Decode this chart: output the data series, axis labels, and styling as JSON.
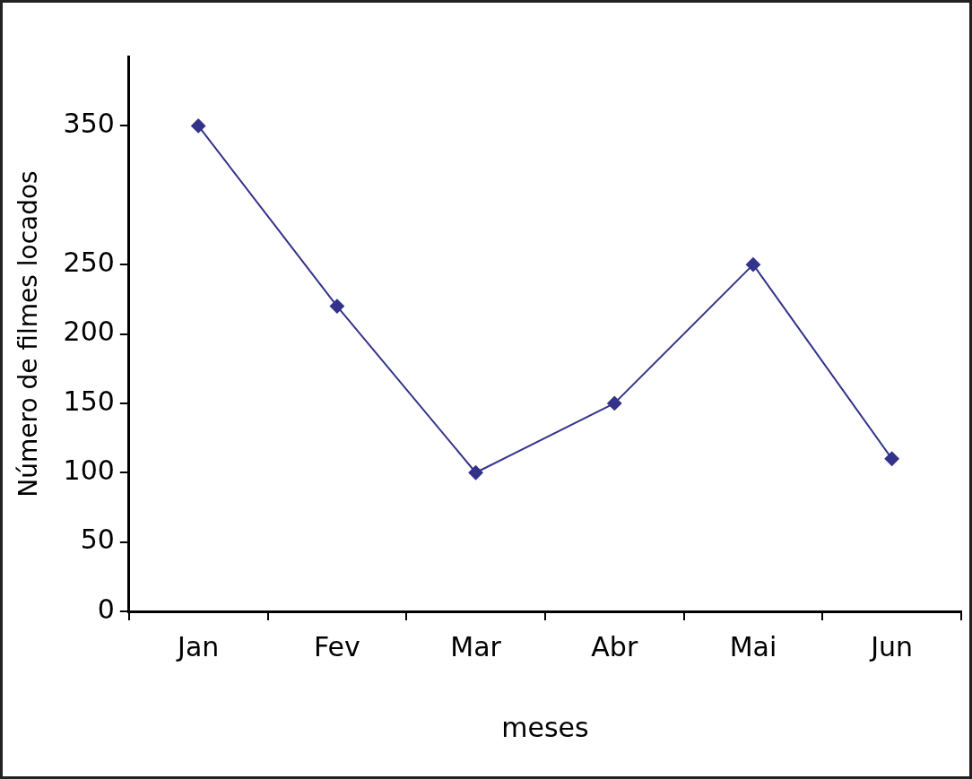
{
  "chart_data": {
    "type": "line",
    "xlabel": "meses",
    "ylabel": "Número de filmes locados",
    "categories": [
      "Jan",
      "Fev",
      "Mar",
      "Abr",
      "Mai",
      "Jun"
    ],
    "series": [
      {
        "color": "#33338a",
        "values": [
          350,
          220,
          100,
          150,
          250,
          110
        ]
      }
    ],
    "ylim": [
      0,
      400
    ],
    "yticks": [
      0,
      50,
      100,
      150,
      200,
      250,
      350
    ],
    "marker": "diamond",
    "line_style": "solid",
    "legend": false
  }
}
